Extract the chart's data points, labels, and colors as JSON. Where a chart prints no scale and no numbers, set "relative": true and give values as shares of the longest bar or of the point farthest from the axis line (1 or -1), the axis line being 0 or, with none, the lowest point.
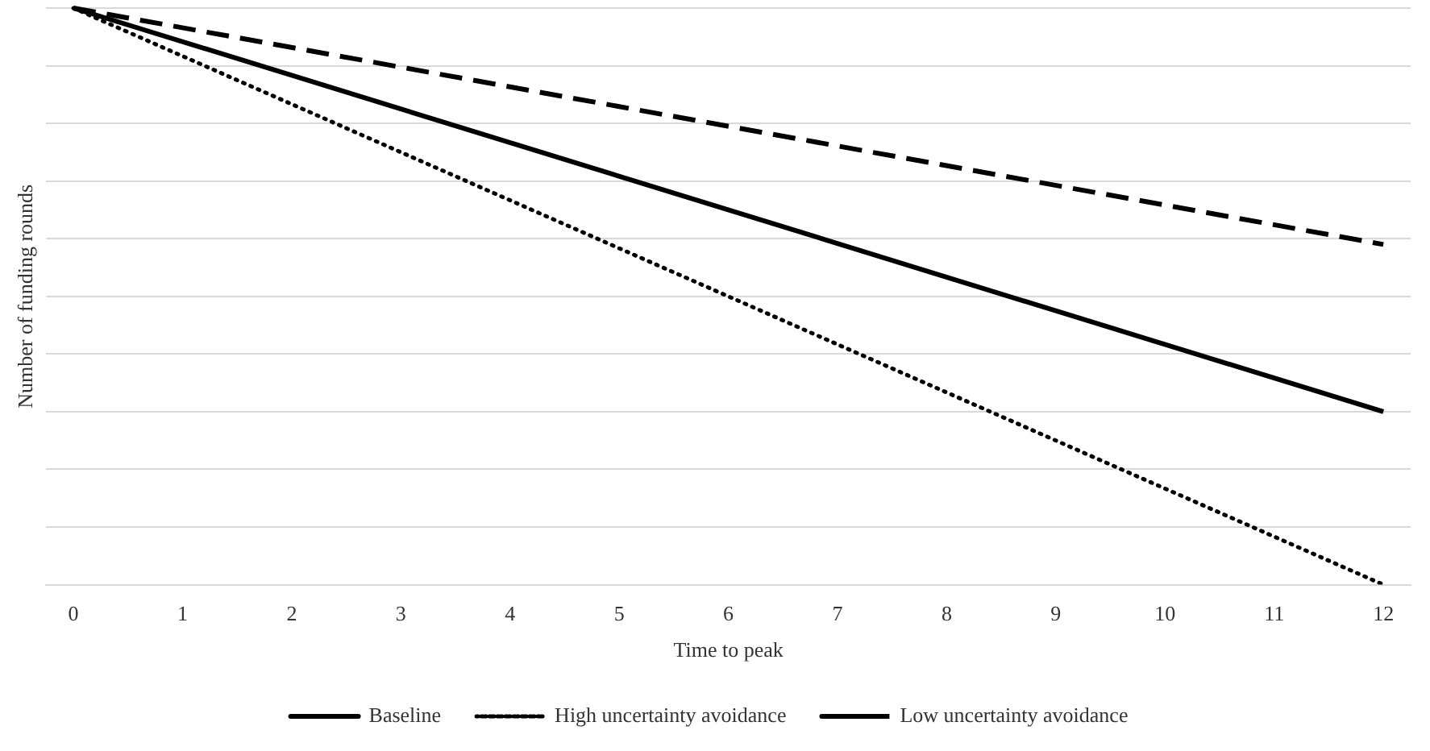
{
  "chart_data": {
    "type": "line",
    "xlabel": "Time to peak",
    "ylabel": "Number of funding rounds",
    "relative": true,
    "x": [
      0,
      12
    ],
    "xlim": [
      -0.25,
      12.25
    ],
    "xticks": [
      0,
      1,
      2,
      3,
      4,
      5,
      6,
      7,
      8,
      9,
      10,
      11,
      12
    ],
    "grid": "y",
    "legend": "bottom",
    "marker": "none",
    "series": [
      {
        "name": "Baseline",
        "color": "#000000",
        "line_style": "solid",
        "values": [
          1,
          0.3
        ]
      },
      {
        "name": "High uncertainty avoidance",
        "color": "#000000",
        "line_style": "dotted",
        "values": [
          1,
          0
        ]
      },
      {
        "name": "Low uncertainty avoidance",
        "color": "#000000",
        "line_style": "dashed",
        "values": [
          1,
          0.59
        ]
      }
    ]
  }
}
